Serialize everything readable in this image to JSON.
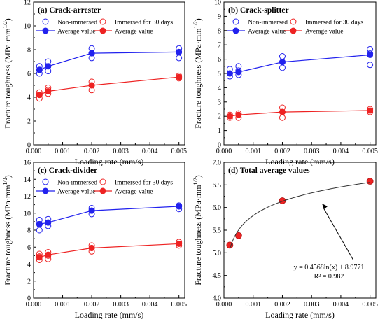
{
  "chart_data": [
    {
      "type": "scatter",
      "title": "(a) Crack-arrester",
      "xlabel": "Loading rate (mm/s)",
      "ylabel": "Fracture toughness (MPa·mm^1/2)",
      "ylabel_main": "Fracture toughness (MPa·mm",
      "ylabel_sup": "1/2",
      "ylabel_close": ")",
      "xlim": [
        0,
        0.0052
      ],
      "ylim": [
        0,
        12
      ],
      "xticks": [
        0.0,
        0.001,
        0.002,
        0.003,
        0.004,
        0.005
      ],
      "xtick_labels": [
        "0.000",
        "0.001",
        "0.002",
        "0.003",
        "0.004",
        "0.005"
      ],
      "yticks": [
        0,
        2,
        4,
        6,
        8,
        10,
        12
      ],
      "ytick_labels": [
        "0",
        "2",
        "4",
        "6",
        "8",
        "10",
        "12"
      ],
      "series": [
        {
          "name": "Non-immersed",
          "kind": "open",
          "color": "#2222ee",
          "points": [
            [
              0.0002,
              6.0
            ],
            [
              0.0002,
              6.3
            ],
            [
              0.0002,
              6.6
            ],
            [
              0.0005,
              6.2
            ],
            [
              0.0005,
              6.6
            ],
            [
              0.0005,
              7.0
            ],
            [
              0.002,
              7.3
            ],
            [
              0.002,
              7.7
            ],
            [
              0.002,
              8.1
            ],
            [
              0.005,
              7.3
            ],
            [
              0.005,
              7.8
            ],
            [
              0.005,
              8.1
            ]
          ]
        },
        {
          "name": "Average value",
          "kind": "line",
          "color": "#2222ee",
          "points": [
            [
              0.0002,
              6.3
            ],
            [
              0.0005,
              6.6
            ],
            [
              0.002,
              7.7
            ],
            [
              0.005,
              7.8
            ]
          ]
        },
        {
          "name": "Immersed for 30 days",
          "kind": "open",
          "color": "#ee2222",
          "points": [
            [
              0.0002,
              3.9
            ],
            [
              0.0002,
              4.2
            ],
            [
              0.0002,
              4.4
            ],
            [
              0.0005,
              4.3
            ],
            [
              0.0005,
              4.6
            ],
            [
              0.0005,
              4.8
            ],
            [
              0.002,
              4.6
            ],
            [
              0.002,
              5.0
            ],
            [
              0.002,
              5.3
            ],
            [
              0.005,
              5.6
            ],
            [
              0.005,
              5.8
            ]
          ]
        },
        {
          "name": "Average value",
          "kind": "line",
          "color": "#ee2222",
          "points": [
            [
              0.0002,
              4.2
            ],
            [
              0.0005,
              4.5
            ],
            [
              0.002,
              5.0
            ],
            [
              0.005,
              5.7
            ]
          ]
        }
      ]
    },
    {
      "type": "scatter",
      "title": "(b) Crack-splitter",
      "xlabel": "Loading rate (mm/s)",
      "ylabel": "Fracture toughness (MPa·mm^1/2)",
      "ylabel_main": "Fracture toughness (MPa·mm",
      "ylabel_sup": "1/2",
      "ylabel_close": ")",
      "xlim": [
        0,
        0.0052
      ],
      "ylim": [
        0,
        10
      ],
      "xticks": [
        0.0,
        0.001,
        0.002,
        0.003,
        0.004,
        0.005
      ],
      "xtick_labels": [
        "0.000",
        "0.001",
        "0.002",
        "0.003",
        "0.004",
        "0.005"
      ],
      "yticks": [
        0,
        1,
        2,
        3,
        4,
        5,
        6,
        7,
        8,
        9,
        10
      ],
      "ytick_labels": [
        "0",
        "1",
        "2",
        "3",
        "4",
        "5",
        "6",
        "7",
        "8",
        "9",
        "10"
      ],
      "series": [
        {
          "name": "Non-immersed",
          "kind": "open",
          "color": "#2222ee",
          "points": [
            [
              0.0002,
              4.8
            ],
            [
              0.0002,
              5.0
            ],
            [
              0.0002,
              5.3
            ],
            [
              0.0005,
              4.9
            ],
            [
              0.0005,
              5.2
            ],
            [
              0.0005,
              5.5
            ],
            [
              0.002,
              5.4
            ],
            [
              0.002,
              5.8
            ],
            [
              0.002,
              6.2
            ],
            [
              0.005,
              5.6
            ],
            [
              0.005,
              6.4
            ],
            [
              0.005,
              6.7
            ]
          ]
        },
        {
          "name": "Average value",
          "kind": "line",
          "color": "#2222ee",
          "points": [
            [
              0.0002,
              5.0
            ],
            [
              0.0005,
              5.1
            ],
            [
              0.002,
              5.8
            ],
            [
              0.005,
              6.3
            ]
          ]
        },
        {
          "name": "Immersed for 30 days",
          "kind": "open",
          "color": "#ee2222",
          "points": [
            [
              0.0002,
              1.9
            ],
            [
              0.0002,
              2.1
            ],
            [
              0.0005,
              1.9
            ],
            [
              0.0005,
              2.2
            ],
            [
              0.002,
              1.9
            ],
            [
              0.002,
              2.3
            ],
            [
              0.002,
              2.6
            ],
            [
              0.005,
              2.3
            ],
            [
              0.005,
              2.5
            ]
          ]
        },
        {
          "name": "Average value",
          "kind": "line",
          "color": "#ee2222",
          "points": [
            [
              0.0002,
              2.0
            ],
            [
              0.0005,
              2.1
            ],
            [
              0.002,
              2.3
            ],
            [
              0.005,
              2.4
            ]
          ]
        }
      ]
    },
    {
      "type": "scatter",
      "title": "(c) Crack-divider",
      "xlabel": "Loading rate (mm/s)",
      "ylabel": "Fracture toughness (MPa·mm^1/2)",
      "ylabel_main": "Fracture toughness (MPa·mm",
      "ylabel_sup": "1/2",
      "ylabel_close": ")",
      "xlim": [
        0,
        0.0052
      ],
      "ylim": [
        0,
        16
      ],
      "xticks": [
        0.0,
        0.001,
        0.002,
        0.003,
        0.004,
        0.005
      ],
      "xtick_labels": [
        "0.000",
        "0.001",
        "0.002",
        "0.003",
        "0.004",
        "0.005"
      ],
      "yticks": [
        0,
        2,
        4,
        6,
        8,
        10,
        12,
        14,
        16
      ],
      "ytick_labels": [
        "0",
        "2",
        "4",
        "6",
        "8",
        "10",
        "12",
        "14",
        "16"
      ],
      "series": [
        {
          "name": "Non-immersed",
          "kind": "open",
          "color": "#2222ee",
          "points": [
            [
              0.0002,
              8.0
            ],
            [
              0.0002,
              8.7
            ],
            [
              0.0002,
              9.2
            ],
            [
              0.0005,
              8.5
            ],
            [
              0.0005,
              8.9
            ],
            [
              0.0005,
              9.3
            ],
            [
              0.002,
              9.9
            ],
            [
              0.002,
              10.3
            ],
            [
              0.002,
              10.6
            ],
            [
              0.005,
              10.5
            ],
            [
              0.005,
              10.9
            ]
          ]
        },
        {
          "name": "Average value",
          "kind": "line",
          "color": "#2222ee",
          "points": [
            [
              0.0002,
              8.7
            ],
            [
              0.0005,
              8.9
            ],
            [
              0.002,
              10.3
            ],
            [
              0.005,
              10.8
            ]
          ]
        },
        {
          "name": "Immersed for 30 days",
          "kind": "open",
          "color": "#ee2222",
          "points": [
            [
              0.0002,
              4.5
            ],
            [
              0.0002,
              4.9
            ],
            [
              0.0002,
              5.2
            ],
            [
              0.0005,
              4.6
            ],
            [
              0.0005,
              5.0
            ],
            [
              0.0005,
              5.4
            ],
            [
              0.002,
              5.5
            ],
            [
              0.002,
              5.9
            ],
            [
              0.002,
              6.2
            ],
            [
              0.005,
              6.2
            ],
            [
              0.005,
              6.6
            ]
          ]
        },
        {
          "name": "Average value",
          "kind": "line",
          "color": "#ee2222",
          "points": [
            [
              0.0002,
              4.8
            ],
            [
              0.0005,
              5.1
            ],
            [
              0.002,
              5.9
            ],
            [
              0.005,
              6.4
            ]
          ]
        }
      ]
    },
    {
      "type": "scatter",
      "title": "(d) Total average values",
      "xlabel": "Loading rate (mm/s)",
      "ylabel": "Fracture toughness (MPa·mm^1/2)",
      "ylabel_main": "Fracture toughness (MPa·mm",
      "ylabel_sup": "1/2",
      "ylabel_close": ")",
      "xlim": [
        0,
        0.0052
      ],
      "ylim": [
        4.0,
        7.0
      ],
      "xticks": [
        0.0,
        0.001,
        0.002,
        0.003,
        0.004,
        0.005
      ],
      "xtick_labels": [
        "0.000",
        "0.001",
        "0.002",
        "0.003",
        "0.004",
        "0.005"
      ],
      "yticks": [
        4.0,
        4.5,
        5.0,
        5.5,
        6.0,
        6.5,
        7.0
      ],
      "ytick_labels": [
        "4.0",
        "4.5",
        "5.0",
        "5.5",
        "6.0",
        "6.5",
        "7.0"
      ],
      "series": [
        {
          "kind": "ball",
          "color": "#ee2222",
          "points": [
            [
              0.0002,
              5.17
            ],
            [
              0.0005,
              5.38
            ],
            [
              0.002,
              6.15
            ],
            [
              0.005,
              6.58
            ]
          ]
        }
      ],
      "fit": {
        "kind": "log",
        "a": 0.4568,
        "b": 8.9771,
        "x_range": [
          0.0002,
          0.005
        ],
        "color": "#333333"
      },
      "annotation": {
        "line1": "y = 0.4568ln(x) + 8.9771",
        "line2": "R² = 0.982"
      }
    }
  ]
}
